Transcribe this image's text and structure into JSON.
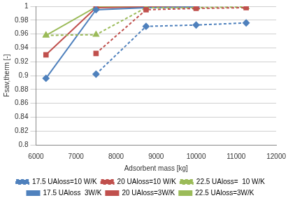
{
  "chart_data": {
    "type": "line",
    "x_label": "Adsorbent mass [kg]",
    "y_label": "Fsav,therm [-]",
    "x": [
      6250,
      7500,
      8750,
      10000,
      11250
    ],
    "xlim": [
      6000,
      12000
    ],
    "xticks": [
      6000,
      7000,
      8000,
      9000,
      10000,
      11000,
      12000
    ],
    "ylim": [
      0.8,
      1
    ],
    "yticks": [
      0.8,
      0.82,
      0.84,
      0.86,
      0.88,
      0.9,
      0.92,
      0.94,
      0.96,
      0.98,
      1
    ],
    "grid": true,
    "legend": "bottom",
    "series": [
      {
        "name": "17.5 UAloss=10 W/K",
        "color": "#4f81bd",
        "marker": "diamond",
        "line_style": "dashed",
        "values": [
          null,
          0.902,
          0.971,
          0.973,
          0.976
        ]
      },
      {
        "name": "20 UAloss=10 W/K",
        "color": "#c0504d",
        "marker": "square",
        "line_style": "dashed",
        "values": [
          null,
          0.932,
          0.995,
          0.997,
          0.998
        ]
      },
      {
        "name": "22.5 UAloss=  10 W/K",
        "color": "#9bbb59",
        "marker": "triangle",
        "line_style": "dashed",
        "values": [
          0.958,
          0.959,
          0.998,
          0.998,
          0.999
        ]
      },
      {
        "name": "17.5 UAloss  3W/K",
        "color": "#4f81bd",
        "marker": "diamond",
        "line_style": "solid",
        "values": [
          0.896,
          0.995,
          0.998,
          0.999,
          null
        ]
      },
      {
        "name": "20 UAloss=3W/K",
        "color": "#c0504d",
        "marker": "square",
        "line_style": "solid",
        "values": [
          0.93,
          0.998,
          0.999,
          0.999,
          null
        ]
      },
      {
        "name": "22.5 UAloss=3W/K",
        "color": "#9bbb59",
        "marker": "triangle",
        "line_style": "solid",
        "values": [
          0.958,
          0.999,
          1,
          1,
          null
        ]
      }
    ]
  }
}
